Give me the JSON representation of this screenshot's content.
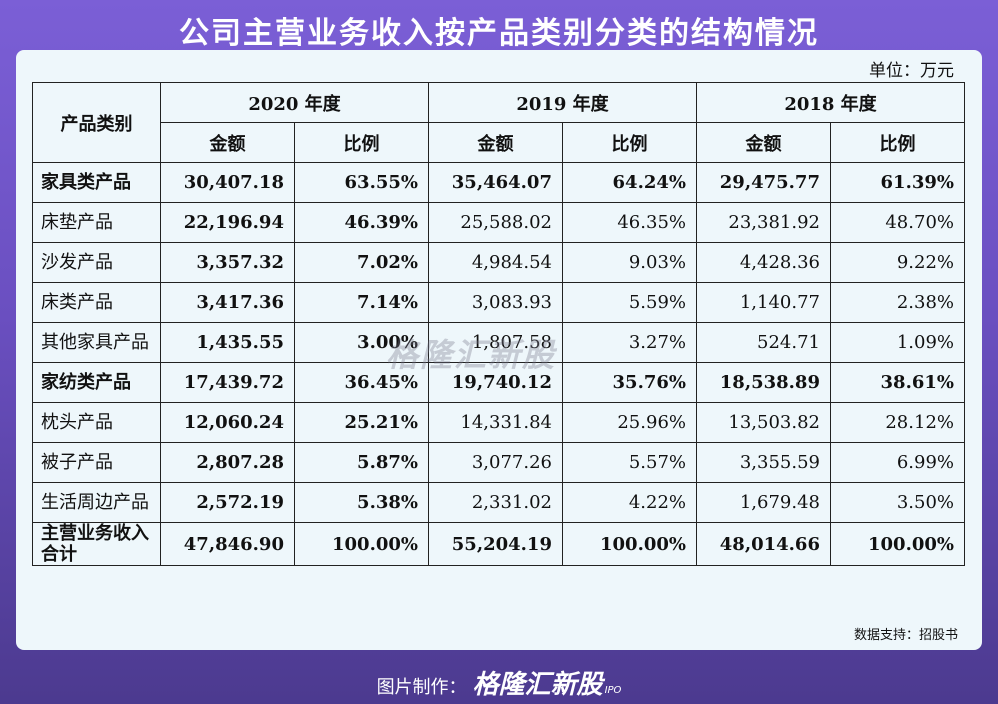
{
  "title": "公司主营业务收入按产品类别分类的结构情况",
  "unit": "单位：万元",
  "header": {
    "category": "产品类别",
    "years": [
      "2020 年度",
      "2019 年度",
      "2018 年度"
    ],
    "amount": "金额",
    "ratio": "比例"
  },
  "rows": [
    {
      "name": "家具类产品",
      "v": [
        "30,407.18",
        "63.55%",
        "35,464.07",
        "64.24%",
        "29,475.77",
        "61.39%"
      ]
    },
    {
      "name": "床垫产品",
      "v": [
        "22,196.94",
        "46.39%",
        "25,588.02",
        "46.35%",
        "23,381.92",
        "48.70%"
      ]
    },
    {
      "name": "沙发产品",
      "v": [
        "3,357.32",
        "7.02%",
        "4,984.54",
        "9.03%",
        "4,428.36",
        "9.22%"
      ]
    },
    {
      "name": "床类产品",
      "v": [
        "3,417.36",
        "7.14%",
        "3,083.93",
        "5.59%",
        "1,140.77",
        "2.38%"
      ]
    },
    {
      "name": "其他家具产品",
      "v": [
        "1,435.55",
        "3.00%",
        "1,807.58",
        "3.27%",
        "524.71",
        "1.09%"
      ]
    },
    {
      "name": "家纺类产品",
      "v": [
        "17,439.72",
        "36.45%",
        "19,740.12",
        "35.76%",
        "18,538.89",
        "38.61%"
      ]
    },
    {
      "name": "枕头产品",
      "v": [
        "12,060.24",
        "25.21%",
        "14,331.84",
        "25.96%",
        "13,503.82",
        "28.12%"
      ]
    },
    {
      "name": "被子产品",
      "v": [
        "2,807.28",
        "5.87%",
        "3,077.26",
        "5.57%",
        "3,355.59",
        "6.99%"
      ]
    },
    {
      "name": "生活周边产品",
      "v": [
        "2,572.19",
        "5.38%",
        "2,331.02",
        "4.22%",
        "1,679.48",
        "3.50%"
      ]
    },
    {
      "name": "主营业务收入合计",
      "v": [
        "47,846.90",
        "100.00%",
        "55,204.19",
        "100.00%",
        "48,014.66",
        "100.00%"
      ]
    }
  ],
  "source": "数据支持：招股书",
  "watermark": "格隆汇新股",
  "footer": {
    "label": "图片制作：",
    "brand": "格隆汇新股",
    "ipo": "IPO"
  }
}
